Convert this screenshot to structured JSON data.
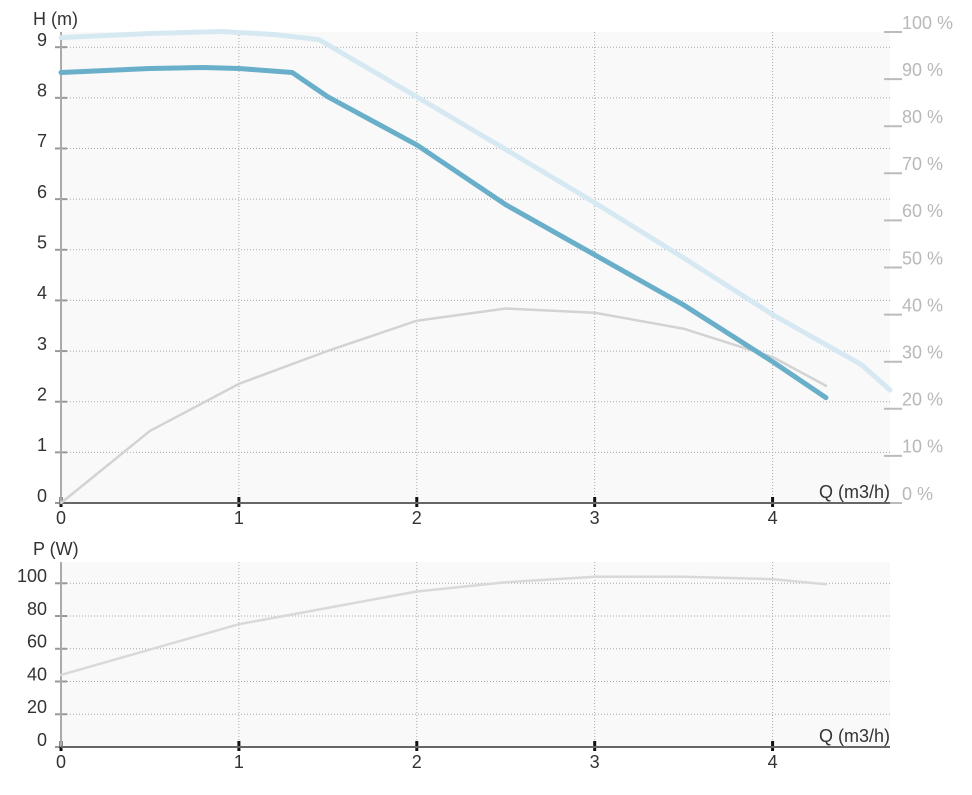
{
  "chart_data": [
    {
      "type": "line",
      "y_label": "H (m)",
      "x_label": "Q (m3/h)",
      "xlim": [
        0,
        4.66
      ],
      "xticks": [
        0,
        1,
        2,
        3,
        4
      ],
      "ylim": [
        0,
        9.3
      ],
      "yticks": [
        0,
        1,
        2,
        3,
        4,
        5,
        6,
        7,
        8,
        9
      ],
      "y2lim": [
        0,
        100
      ],
      "y2ticks": [
        {
          "value": 0,
          "label": "0 %"
        },
        {
          "value": 10,
          "label": "10 %"
        },
        {
          "value": 20,
          "label": "20 %"
        },
        {
          "value": 30,
          "label": "30 %"
        },
        {
          "value": 40,
          "label": "40 %"
        },
        {
          "value": 50,
          "label": "50 %"
        },
        {
          "value": 60,
          "label": "60 %"
        },
        {
          "value": 70,
          "label": "70 %"
        },
        {
          "value": 80,
          "label": "80 %"
        },
        {
          "value": 90,
          "label": "90 %"
        },
        {
          "value": 100,
          "label": "100 %"
        }
      ],
      "grid": true,
      "series": [
        {
          "color": "#d6e9f2",
          "x": [
            0,
            0.5,
            0.9,
            1.2,
            1.45,
            2,
            2.5,
            3,
            3.5,
            4,
            4.5,
            4.66
          ],
          "values": [
            9.19,
            9.27,
            9.31,
            9.25,
            9.15,
            8.02,
            6.98,
            5.93,
            4.84,
            3.72,
            2.73,
            2.23
          ]
        },
        {
          "color": "#d3d3d3",
          "axis": "y2",
          "x": [
            0,
            0.5,
            1,
            1.5,
            2,
            2.5,
            3,
            3.5,
            4,
            4.3
          ],
          "values": [
            0,
            15.3,
            25.3,
            32.3,
            38.7,
            41.3,
            40.4,
            37,
            31,
            24.9
          ]
        },
        {
          "color": "#6aafc9",
          "x": [
            0,
            0.5,
            0.8,
            1,
            1.3,
            1.5,
            2,
            2.5,
            3,
            3.5,
            4,
            4.3
          ],
          "values": [
            8.5,
            8.58,
            8.6,
            8.58,
            8.5,
            8.02,
            7.07,
            5.89,
            4.9,
            3.91,
            2.79,
            2.08
          ]
        }
      ]
    },
    {
      "type": "line",
      "y_label": "P (W)",
      "x_label": "Q (m3/h)",
      "xlim": [
        0,
        4.66
      ],
      "xticks": [
        0,
        1,
        2,
        3,
        4
      ],
      "ylim": [
        0,
        113
      ],
      "yticks": [
        0,
        20,
        40,
        60,
        80,
        100
      ],
      "grid": true,
      "series": [
        {
          "color": "#d9d9d9",
          "x": [
            0,
            0.5,
            1,
            1.5,
            2,
            2.5,
            3,
            3.5,
            4,
            4.3
          ],
          "values": [
            44,
            59.5,
            75,
            85,
            95,
            100.6,
            104,
            104,
            102.5,
            99.4
          ]
        }
      ]
    }
  ]
}
